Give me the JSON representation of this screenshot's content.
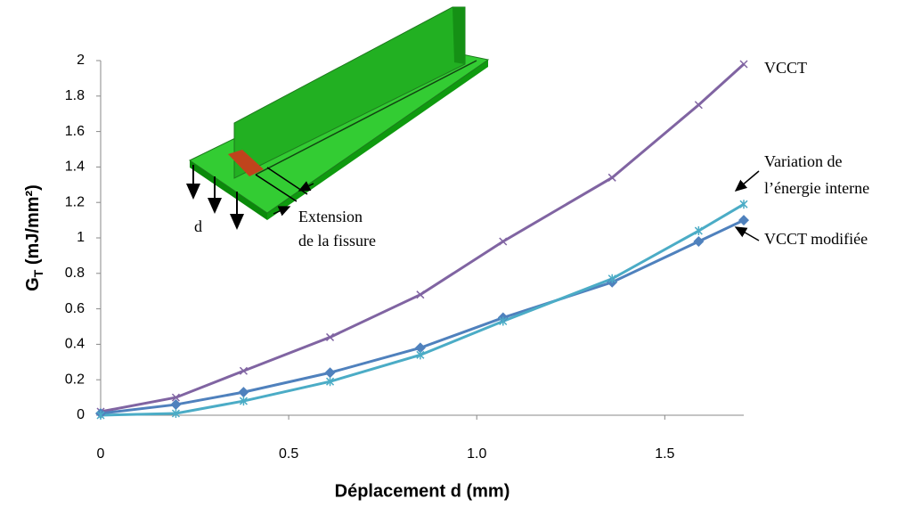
{
  "chart_data": {
    "type": "line",
    "x_label": "Déplacement d (mm)",
    "y_label": {
      "main": "G",
      "sub": "T",
      "unit": " (mJ/mm²)"
    },
    "x": [
      0,
      0.2,
      0.38,
      0.61,
      0.85,
      1.07,
      1.36,
      1.59,
      1.71
    ],
    "xlim": [
      0,
      1.71
    ],
    "xticks": [
      0,
      0.5,
      {
        "value": 1,
        "label": "1.0"
      },
      1.5
    ],
    "ylim": [
      0,
      2
    ],
    "yticks": [
      0,
      0.2,
      0.4,
      0.6,
      0.8,
      1,
      1.2,
      1.4,
      1.6,
      1.8,
      2
    ],
    "series": [
      {
        "name": "VCCT",
        "color": "#8064a2",
        "marker": "x",
        "values": [
          0.02,
          0.1,
          0.25,
          0.44,
          0.68,
          0.98,
          1.34,
          1.75,
          1.98
        ]
      },
      {
        "name": "VCCT modifiée",
        "color": "#4f81bd",
        "marker": "diamond",
        "values": [
          0.01,
          0.06,
          0.13,
          0.24,
          0.38,
          0.55,
          0.75,
          0.98,
          1.1
        ]
      },
      {
        "name": "Variation de l’énergie interne",
        "color": "#4bacc6",
        "marker": "star",
        "values": [
          0,
          0.01,
          0.08,
          0.19,
          0.34,
          0.53,
          0.77,
          1.04,
          1.19
        ]
      }
    ],
    "annotations": [
      "VCCT",
      "Variation de",
      "l’énergie interne",
      "VCCT modifiée",
      "d",
      "Extension",
      "de la fissure"
    ]
  }
}
